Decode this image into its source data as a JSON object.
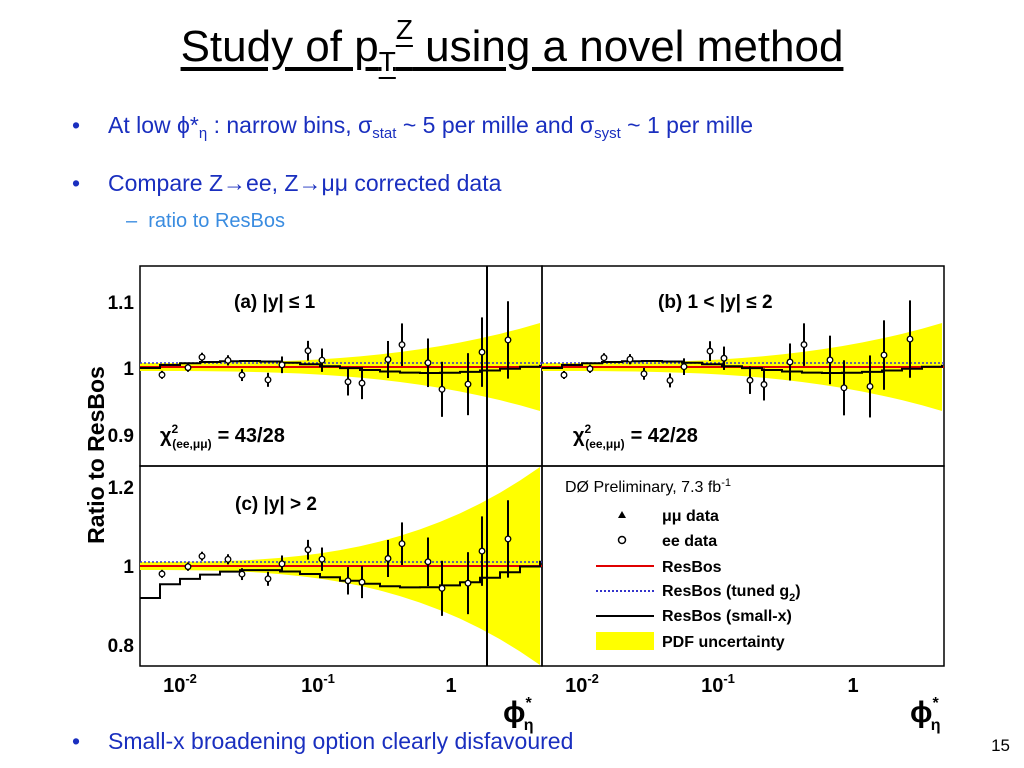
{
  "slide": {
    "title_main": "Study of p",
    "title_sub": "T",
    "title_sup": "Z",
    "title_rest": " using a novel method",
    "bullet1_a": "At low ϕ*",
    "bullet1_b": "η",
    "bullet1_c": " : narrow bins, σ",
    "bullet1_d": "stat",
    "bullet1_e": " ~ 5 per mille and σ",
    "bullet1_f": "syst",
    "bullet1_g": " ~ 1 per mille",
    "bullet2": "Compare Z→ee, Z→μμ corrected data",
    "subbullet": "ratio to ResBos",
    "bullet3": "Small-x broadening option clearly disfavoured",
    "bullet_marker": "•",
    "subbullet_marker": "–",
    "page_number": "15"
  },
  "figure": {
    "ylabel": "Ratio to ResBos",
    "xlabel": "ϕ*η",
    "xlabel_main": "ϕ",
    "xlabel_sup": "*",
    "xlabel_sub": "η",
    "preliminary": "DØ Preliminary, 7.3 fb",
    "preliminary_sup": "-1",
    "xticks": [
      "10",
      "10",
      "1"
    ],
    "xticks_exp": [
      "-2",
      "-1",
      ""
    ],
    "panel_a": {
      "label": "(a) |y| ≤ 1",
      "chi2": "χ²(ee,μμ) = 43/28",
      "chi2_main": "χ",
      "chi2_sup": "2",
      "chi2_sub": "(ee,μμ)",
      "chi2_val": "= 43/28",
      "yticks": [
        "1.1",
        "1",
        "0.9"
      ]
    },
    "panel_b": {
      "label": "(b) 1 < |y| ≤ 2",
      "chi2_main": "χ",
      "chi2_sup": "2",
      "chi2_sub": "(ee,μμ)",
      "chi2_val": "= 42/28"
    },
    "panel_c": {
      "label": "(c) |y| > 2",
      "yticks": [
        "1.2",
        "1",
        "0.8"
      ]
    },
    "legend": [
      {
        "label": "μμ data",
        "marker": "triangle"
      },
      {
        "label": "ee data",
        "marker": "circle"
      },
      {
        "label": "ResBos",
        "color": "#e00000"
      },
      {
        "label": "ResBos (tuned g",
        "sub": "2",
        "close": ")",
        "color": "#3333cc"
      },
      {
        "label": "ResBos (small-x)",
        "color": "#000000"
      },
      {
        "label": "PDF uncertainty",
        "color": "#ffff00"
      }
    ],
    "colors": {
      "resbos": "#e00000",
      "tuned": "#3333cc",
      "smallx": "#000000",
      "pdf": "#ffff00",
      "bullet": "#1a2fbf",
      "subbullet": "#3a8ce0"
    }
  }
}
